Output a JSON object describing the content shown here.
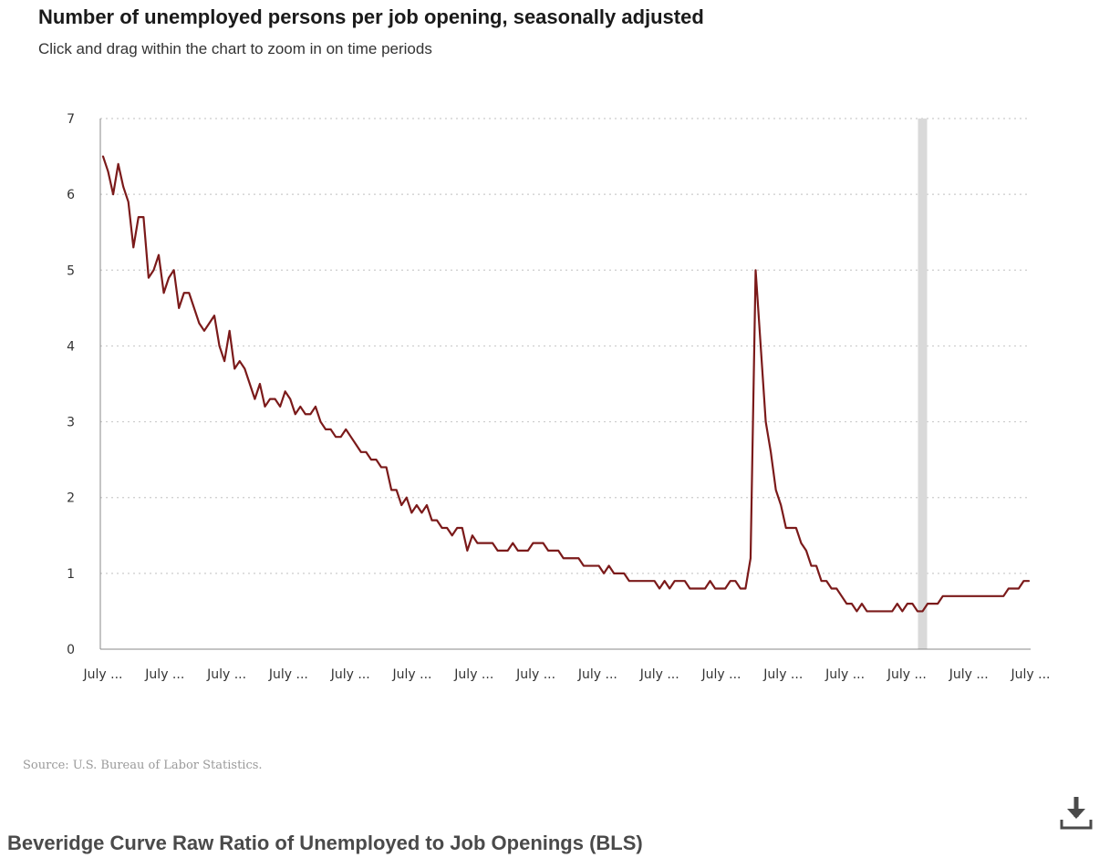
{
  "header": {
    "title": "Number of unemployed persons per job opening, seasonally adjusted",
    "subtitle": "Click and drag within the chart to zoom in on time periods"
  },
  "footer": {
    "source": "Source: U.S. Bureau of Labor Statistics.",
    "caption": "Beveridge Curve Raw Ratio of Unemployed to Job Openings (BLS)",
    "download_icon": "download-icon"
  },
  "colors": {
    "line": "#7b1a1a",
    "recession_band": "#d9d9d9",
    "grid": "#cccccc",
    "axis": "#888888"
  },
  "chart_data": {
    "type": "line",
    "title": "Number of unemployed persons per job opening, seasonally adjusted",
    "subtitle": "Click and drag within the chart to zoom in on time periods",
    "xlabel": "",
    "ylabel": "",
    "ylim": [
      0,
      7
    ],
    "yticks": [
      0,
      1,
      2,
      3,
      4,
      5,
      6,
      7
    ],
    "xticks": [
      "July ...",
      "July ...",
      "July ...",
      "July ...",
      "July ...",
      "July ...",
      "July ...",
      "July ...",
      "July ...",
      "July ...",
      "July ...",
      "July ...",
      "July ...",
      "July ...",
      "July ...",
      "July ..."
    ],
    "grid": "horizontal-dotted",
    "legend": "none",
    "recession_shading": {
      "from_index": 162,
      "to_index": 163
    },
    "series": [
      {
        "values": [
          6.5,
          6.3,
          6.0,
          6.4,
          6.1,
          5.9,
          5.3,
          5.7,
          5.7,
          4.9,
          5.0,
          5.2,
          4.7,
          4.9,
          5.0,
          4.5,
          4.7,
          4.7,
          4.5,
          4.3,
          4.2,
          4.3,
          4.4,
          4.0,
          3.8,
          4.2,
          3.7,
          3.8,
          3.7,
          3.5,
          3.3,
          3.5,
          3.2,
          3.3,
          3.3,
          3.2,
          3.4,
          3.3,
          3.1,
          3.2,
          3.1,
          3.1,
          3.2,
          3.0,
          2.9,
          2.9,
          2.8,
          2.8,
          2.9,
          2.8,
          2.7,
          2.6,
          2.6,
          2.5,
          2.5,
          2.4,
          2.4,
          2.1,
          2.1,
          1.9,
          2.0,
          1.8,
          1.9,
          1.8,
          1.9,
          1.7,
          1.7,
          1.6,
          1.6,
          1.5,
          1.6,
          1.6,
          1.3,
          1.5,
          1.4,
          1.4,
          1.4,
          1.4,
          1.3,
          1.3,
          1.3,
          1.4,
          1.3,
          1.3,
          1.3,
          1.4,
          1.4,
          1.4,
          1.3,
          1.3,
          1.3,
          1.2,
          1.2,
          1.2,
          1.2,
          1.1,
          1.1,
          1.1,
          1.1,
          1.0,
          1.1,
          1.0,
          1.0,
          1.0,
          0.9,
          0.9,
          0.9,
          0.9,
          0.9,
          0.9,
          0.8,
          0.9,
          0.8,
          0.9,
          0.9,
          0.9,
          0.8,
          0.8,
          0.8,
          0.8,
          0.9,
          0.8,
          0.8,
          0.8,
          0.9,
          0.9,
          0.8,
          0.8,
          1.2,
          5.0,
          4.0,
          3.0,
          2.6,
          2.1,
          1.9,
          1.6,
          1.6,
          1.6,
          1.4,
          1.3,
          1.1,
          1.1,
          0.9,
          0.9,
          0.8,
          0.8,
          0.7,
          0.6,
          0.6,
          0.5,
          0.6,
          0.5,
          0.5,
          0.5,
          0.5,
          0.5,
          0.5,
          0.6,
          0.5,
          0.6,
          0.6,
          0.5,
          0.5,
          0.6,
          0.6,
          0.6,
          0.7,
          0.7,
          0.7,
          0.7,
          0.7,
          0.7,
          0.7,
          0.7,
          0.7,
          0.7,
          0.7,
          0.7,
          0.7,
          0.8,
          0.8,
          0.8,
          0.9,
          0.9
        ]
      }
    ]
  }
}
